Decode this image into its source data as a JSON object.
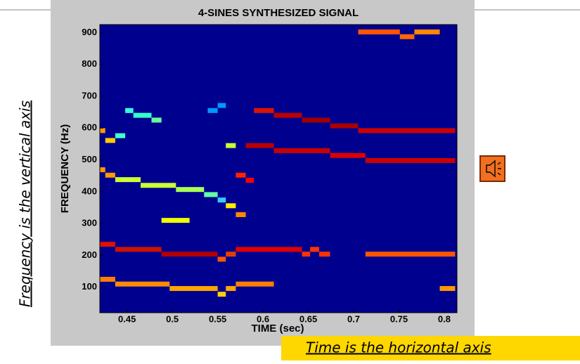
{
  "chart_data": {
    "type": "spectrogram",
    "title": "4-SINES SYNTHESIZED SIGNAL",
    "x_label": "TIME (sec)",
    "y_label": "FREQUENCY (Hz)",
    "xlim": [
      0.42,
      0.814
    ],
    "ylim": [
      20,
      925
    ],
    "xticks": [
      0.45,
      0.5,
      0.55,
      0.6,
      0.65,
      0.7,
      0.75,
      0.8
    ],
    "yticks": [
      100,
      200,
      300,
      400,
      500,
      600,
      700,
      800,
      900
    ],
    "background": "#00008f",
    "segments": [
      {
        "t0": 0.42,
        "t1": 0.437,
        "f": 125,
        "color": "#ff7f00"
      },
      {
        "t0": 0.437,
        "t1": 0.497,
        "f": 110,
        "color": "#ff8c00"
      },
      {
        "t0": 0.497,
        "t1": 0.55,
        "f": 96,
        "color": "#ffa500"
      },
      {
        "t0": 0.55,
        "t1": 0.559,
        "f": 78,
        "color": "#ffd000"
      },
      {
        "t0": 0.559,
        "t1": 0.57,
        "f": 96,
        "color": "#ffa500"
      },
      {
        "t0": 0.57,
        "t1": 0.612,
        "f": 110,
        "color": "#ff7f00"
      },
      {
        "t0": 0.795,
        "t1": 0.812,
        "f": 96,
        "color": "#ff9900"
      },
      {
        "t0": 0.42,
        "t1": 0.437,
        "f": 235,
        "color": "#e01000"
      },
      {
        "t0": 0.437,
        "t1": 0.488,
        "f": 219,
        "color": "#cc1100"
      },
      {
        "t0": 0.488,
        "t1": 0.55,
        "f": 204,
        "color": "#b00000"
      },
      {
        "t0": 0.55,
        "t1": 0.559,
        "f": 188,
        "color": "#ff5500"
      },
      {
        "t0": 0.559,
        "t1": 0.57,
        "f": 204,
        "color": "#e04000"
      },
      {
        "t0": 0.57,
        "t1": 0.643,
        "f": 219,
        "color": "#e00000"
      },
      {
        "t0": 0.643,
        "t1": 0.652,
        "f": 204,
        "color": "#ff3300"
      },
      {
        "t0": 0.652,
        "t1": 0.662,
        "f": 219,
        "color": "#ff3300"
      },
      {
        "t0": 0.662,
        "t1": 0.674,
        "f": 204,
        "color": "#ff3300"
      },
      {
        "t0": 0.713,
        "t1": 0.812,
        "f": 204,
        "color": "#ff5500"
      },
      {
        "t0": 0.42,
        "t1": 0.426,
        "f": 469,
        "color": "#ff9900"
      },
      {
        "t0": 0.426,
        "t1": 0.437,
        "f": 452,
        "color": "#ff9900"
      },
      {
        "t0": 0.437,
        "t1": 0.465,
        "f": 438,
        "color": "#ccff33"
      },
      {
        "t0": 0.465,
        "t1": 0.504,
        "f": 420,
        "color": "#ccff33"
      },
      {
        "t0": 0.504,
        "t1": 0.535,
        "f": 407,
        "color": "#aaff55"
      },
      {
        "t0": 0.535,
        "t1": 0.55,
        "f": 391,
        "color": "#66ffaa"
      },
      {
        "t0": 0.55,
        "t1": 0.559,
        "f": 374,
        "color": "#33ccff"
      },
      {
        "t0": 0.559,
        "t1": 0.57,
        "f": 356,
        "color": "#ffee00"
      },
      {
        "t0": 0.57,
        "t1": 0.581,
        "f": 328,
        "color": "#ff8800"
      },
      {
        "t0": 0.488,
        "t1": 0.519,
        "f": 310,
        "color": "#eeff00"
      },
      {
        "t0": 0.42,
        "t1": 0.426,
        "f": 592,
        "color": "#ff9900"
      },
      {
        "t0": 0.426,
        "t1": 0.437,
        "f": 561,
        "color": "#ffcc00"
      },
      {
        "t0": 0.437,
        "t1": 0.448,
        "f": 576,
        "color": "#44ffcc"
      },
      {
        "t0": 0.448,
        "t1": 0.457,
        "f": 655,
        "color": "#33ffdd"
      },
      {
        "t0": 0.457,
        "t1": 0.477,
        "f": 640,
        "color": "#33ffcc"
      },
      {
        "t0": 0.477,
        "t1": 0.488,
        "f": 625,
        "color": "#66ff99"
      },
      {
        "t0": 0.539,
        "t1": 0.55,
        "f": 655,
        "color": "#0099ff"
      },
      {
        "t0": 0.55,
        "t1": 0.559,
        "f": 671,
        "color": "#0099ff"
      },
      {
        "t0": 0.559,
        "t1": 0.57,
        "f": 545,
        "color": "#ccff33"
      },
      {
        "t0": 0.57,
        "t1": 0.581,
        "f": 452,
        "color": "#ff2200"
      },
      {
        "t0": 0.581,
        "t1": 0.59,
        "f": 436,
        "color": "#ff0000"
      },
      {
        "t0": 0.59,
        "t1": 0.612,
        "f": 655,
        "color": "#dd1100"
      },
      {
        "t0": 0.612,
        "t1": 0.643,
        "f": 640,
        "color": "#bb0000"
      },
      {
        "t0": 0.643,
        "t1": 0.674,
        "f": 625,
        "color": "#a00000"
      },
      {
        "t0": 0.674,
        "t1": 0.705,
        "f": 607,
        "color": "#aa0000"
      },
      {
        "t0": 0.705,
        "t1": 0.812,
        "f": 592,
        "color": "#cc0000"
      },
      {
        "t0": 0.581,
        "t1": 0.612,
        "f": 545,
        "color": "#bb0000"
      },
      {
        "t0": 0.612,
        "t1": 0.674,
        "f": 529,
        "color": "#cc0000"
      },
      {
        "t0": 0.674,
        "t1": 0.713,
        "f": 514,
        "color": "#dd0000"
      },
      {
        "t0": 0.713,
        "t1": 0.812,
        "f": 498,
        "color": "#cc0000"
      },
      {
        "t0": 0.705,
        "t1": 0.751,
        "f": 902,
        "color": "#ff5500"
      },
      {
        "t0": 0.751,
        "t1": 0.767,
        "f": 887,
        "color": "#ff6600"
      },
      {
        "t0": 0.767,
        "t1": 0.795,
        "f": 902,
        "color": "#ff8800"
      }
    ]
  },
  "annotations": {
    "vertical": "Frequency is the vertical axis",
    "horizontal": "Time is the horizontal axis"
  }
}
